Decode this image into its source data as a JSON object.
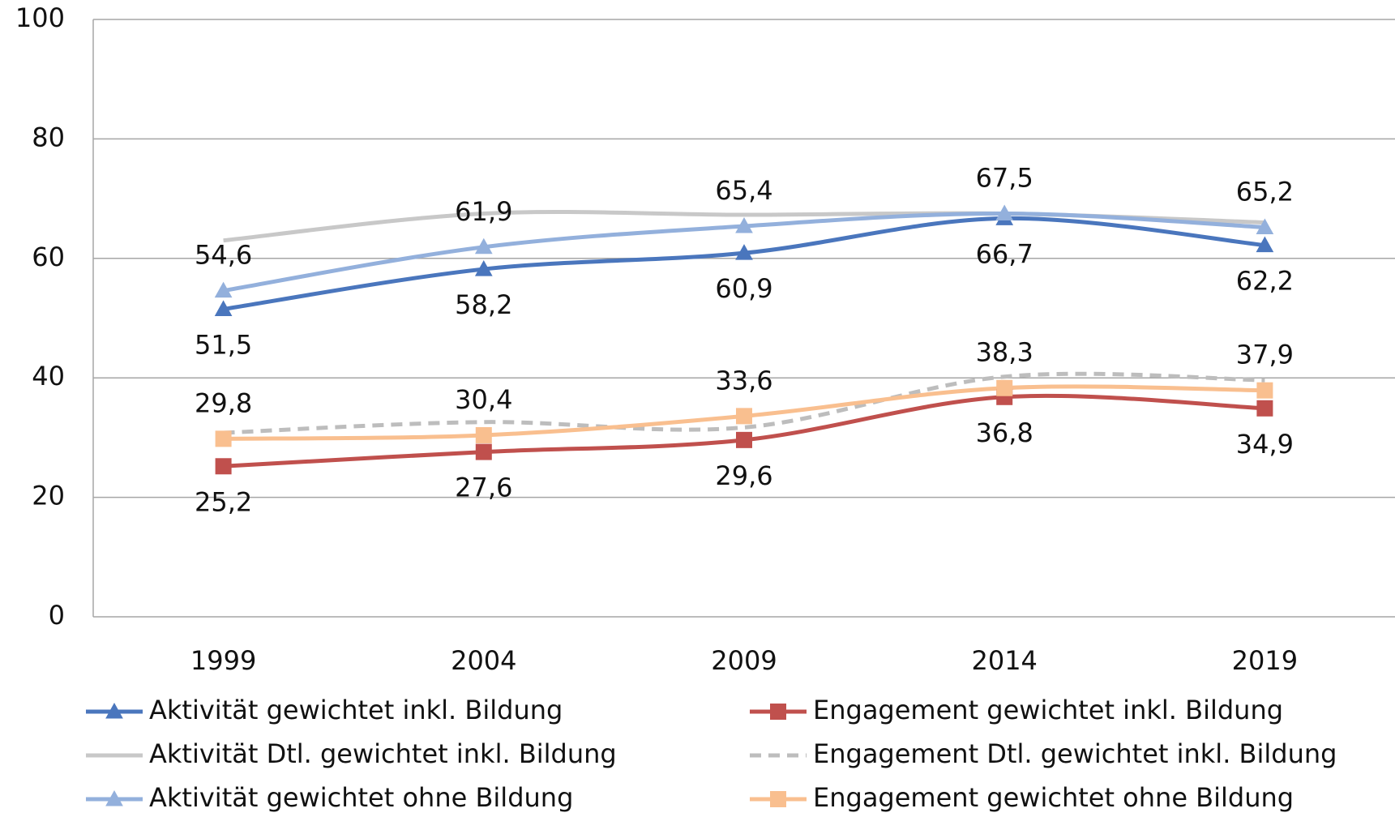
{
  "chart_data": {
    "type": "line",
    "categories": [
      "1999",
      "2004",
      "2009",
      "2014",
      "2019"
    ],
    "ylim": [
      0,
      100
    ],
    "yticks": [
      0,
      20,
      40,
      60,
      80,
      100
    ],
    "grid": true,
    "smooth": true,
    "series": [
      {
        "name": "Aktivität gewichtet inkl. Bildung",
        "color": "#4a76bd",
        "marker": "triangle",
        "line_style": "solid",
        "values": [
          51.5,
          58.2,
          60.9,
          66.7,
          62.2
        ],
        "value_labels": [
          "51,5",
          "58,2",
          "60,9",
          "66,7",
          "62,2"
        ]
      },
      {
        "name": "Aktivität Dtl. gewichtet inkl. Bildung",
        "color": "#c8c8c8",
        "marker": "none",
        "line_style": "solid",
        "values": [
          63.0,
          67.5,
          67.3,
          67.5,
          66.0
        ]
      },
      {
        "name": "Aktivität gewichtet ohne Bildung",
        "color": "#93b0dc",
        "marker": "triangle",
        "line_style": "solid",
        "values": [
          54.6,
          61.9,
          65.4,
          67.5,
          65.2
        ],
        "value_labels": [
          "54,6",
          "61,9",
          "65,4",
          "67,5",
          "65,2"
        ]
      },
      {
        "name": "Engagement gewichtet inkl. Bildung",
        "color": "#c0504d",
        "marker": "square",
        "line_style": "solid",
        "values": [
          25.2,
          27.6,
          29.6,
          36.8,
          34.9
        ],
        "value_labels": [
          "25,2",
          "27,6",
          "29,6",
          "36,8",
          "34,9"
        ]
      },
      {
        "name": "Engagement Dtl. gewichtet inkl. Bildung",
        "color": "#bdbdbd",
        "marker": "none",
        "line_style": "dashed",
        "values": [
          30.8,
          32.6,
          31.7,
          40.2,
          39.6
        ]
      },
      {
        "name": "Engagement gewichtet ohne Bildung",
        "color": "#f9bf8f",
        "marker": "square",
        "line_style": "solid",
        "values": [
          29.8,
          30.4,
          33.6,
          38.3,
          37.9
        ],
        "value_labels": [
          "29,8",
          "30,4",
          "33,6",
          "38,3",
          "37,9"
        ]
      }
    ]
  }
}
